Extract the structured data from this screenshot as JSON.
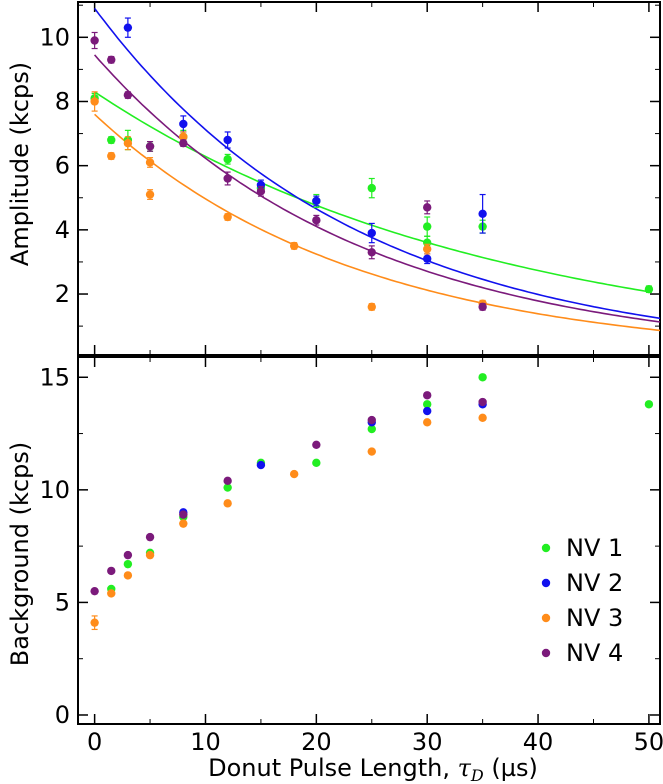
{
  "chart_data": [
    {
      "type": "scatter",
      "panel": "top",
      "ylabel": "Amplitude (kcps)",
      "xlim": [
        -1.5,
        51
      ],
      "ylim": [
        0.1,
        11.1
      ],
      "yticks": [
        2,
        4,
        6,
        8,
        10
      ],
      "xticks": [
        0,
        10,
        20,
        30,
        40,
        50
      ],
      "grid": false,
      "fit": "exponential decay curves",
      "series": [
        {
          "name": "NV 1",
          "color": "#22ee22",
          "x": [
            0,
            1.5,
            3,
            5,
            8,
            12,
            15,
            20,
            25,
            30,
            30,
            35,
            50
          ],
          "y": [
            8.1,
            6.8,
            6.8,
            6.6,
            6.9,
            6.2,
            5.3,
            4.9,
            5.3,
            4.1,
            3.6,
            4.1,
            2.15
          ],
          "err": [
            0.15,
            0.1,
            0.3,
            0.15,
            0.2,
            0.15,
            0.15,
            0.2,
            0.3,
            0.3,
            0.2,
            0.2,
            0.1
          ],
          "fit": {
            "A": 8.3,
            "tau": 36,
            "x_end": 50
          }
        },
        {
          "name": "NV 2",
          "color": "#1111ee",
          "x": [
            3,
            8,
            12,
            15,
            20,
            25,
            30,
            35
          ],
          "y": [
            10.3,
            7.3,
            6.8,
            5.4,
            4.9,
            3.9,
            3.1,
            4.5
          ],
          "err": [
            0.3,
            0.25,
            0.25,
            0.15,
            0.15,
            0.3,
            0.15,
            0.6
          ],
          "fit": {
            "A": 10.9,
            "tau": 23.5,
            "x_end": 51
          }
        },
        {
          "name": "NV 3",
          "color": "#ff8c1a",
          "x": [
            0,
            1.5,
            3,
            5,
            5,
            8,
            12,
            18,
            25,
            30,
            35
          ],
          "y": [
            8.0,
            6.3,
            6.7,
            6.1,
            5.1,
            6.9,
            4.4,
            3.5,
            1.6,
            3.4,
            1.7
          ],
          "err": [
            0.3,
            0.1,
            0.2,
            0.15,
            0.15,
            0.15,
            0.1,
            0.1,
            0.1,
            0.15,
            0.1
          ],
          "fit": {
            "A": 7.6,
            "tau": 23.5,
            "x_end": 51
          }
        },
        {
          "name": "NV 4",
          "color": "#7b1a7b",
          "x": [
            0,
            1.5,
            3,
            5,
            8,
            12,
            15,
            20,
            25,
            30,
            35
          ],
          "y": [
            9.9,
            9.3,
            8.2,
            6.6,
            6.7,
            5.6,
            5.2,
            4.3,
            3.3,
            4.7,
            1.6
          ],
          "err": [
            0.25,
            0.1,
            0.1,
            0.15,
            0.1,
            0.2,
            0.15,
            0.15,
            0.2,
            0.2,
            0.1
          ],
          "fit": {
            "A": 9.45,
            "tau": 24,
            "x_end": 51
          }
        }
      ]
    },
    {
      "type": "scatter",
      "panel": "bottom",
      "xlabel": "Donut Pulse Length, τD (µs)",
      "ylabel": "Background (kcps)",
      "xlim": [
        -1.5,
        51
      ],
      "ylim": [
        -0.4,
        15.9
      ],
      "yticks": [
        0,
        5,
        10,
        15
      ],
      "xticks": [
        0,
        10,
        20,
        30,
        40,
        50
      ],
      "grid": false,
      "legend": "bottom-right",
      "series": [
        {
          "name": "NV 1",
          "color": "#22ee22",
          "x": [
            1.5,
            3,
            5,
            8,
            12,
            15,
            20,
            25,
            30,
            35,
            50
          ],
          "y": [
            5.6,
            6.7,
            7.2,
            8.8,
            10.1,
            11.2,
            11.2,
            12.7,
            13.8,
            15.0,
            13.8
          ],
          "err": [
            0,
            0,
            0,
            0,
            0,
            0,
            0,
            0,
            0,
            0,
            0
          ]
        },
        {
          "name": "NV 2",
          "color": "#1111ee",
          "x": [
            8,
            15,
            25,
            30,
            35
          ],
          "y": [
            9.0,
            11.1,
            13.0,
            13.5,
            13.8
          ],
          "err": [
            0,
            0,
            0,
            0,
            0
          ]
        },
        {
          "name": "NV 3",
          "color": "#ff8c1a",
          "x": [
            0,
            1.5,
            3,
            5,
            8,
            12,
            18,
            25,
            30,
            35
          ],
          "y": [
            4.1,
            5.4,
            6.2,
            7.1,
            8.5,
            9.4,
            10.7,
            11.7,
            13.0,
            13.2
          ],
          "err": [
            0.3,
            0,
            0,
            0,
            0,
            0,
            0,
            0,
            0,
            0
          ]
        },
        {
          "name": "NV 4",
          "color": "#7b1a7b",
          "x": [
            0,
            1.5,
            3,
            5,
            8,
            12,
            20,
            25,
            30,
            35
          ],
          "y": [
            5.5,
            6.4,
            7.1,
            7.9,
            8.9,
            10.4,
            12.0,
            13.1,
            14.2,
            13.9
          ],
          "err": [
            0,
            0,
            0,
            0,
            0,
            0,
            0,
            0,
            0,
            0
          ]
        }
      ]
    }
  ],
  "legend": [
    {
      "label": "NV 1",
      "color": "#22ee22"
    },
    {
      "label": "NV 2",
      "color": "#1111ee"
    },
    {
      "label": "NV 3",
      "color": "#ff8c1a"
    },
    {
      "label": "NV 4",
      "color": "#7b1a7b"
    }
  ],
  "xlabel": {
    "main": "Donut Pulse Length, ",
    "tau": "τ",
    "sub": "D",
    "unit": " (µs)"
  }
}
